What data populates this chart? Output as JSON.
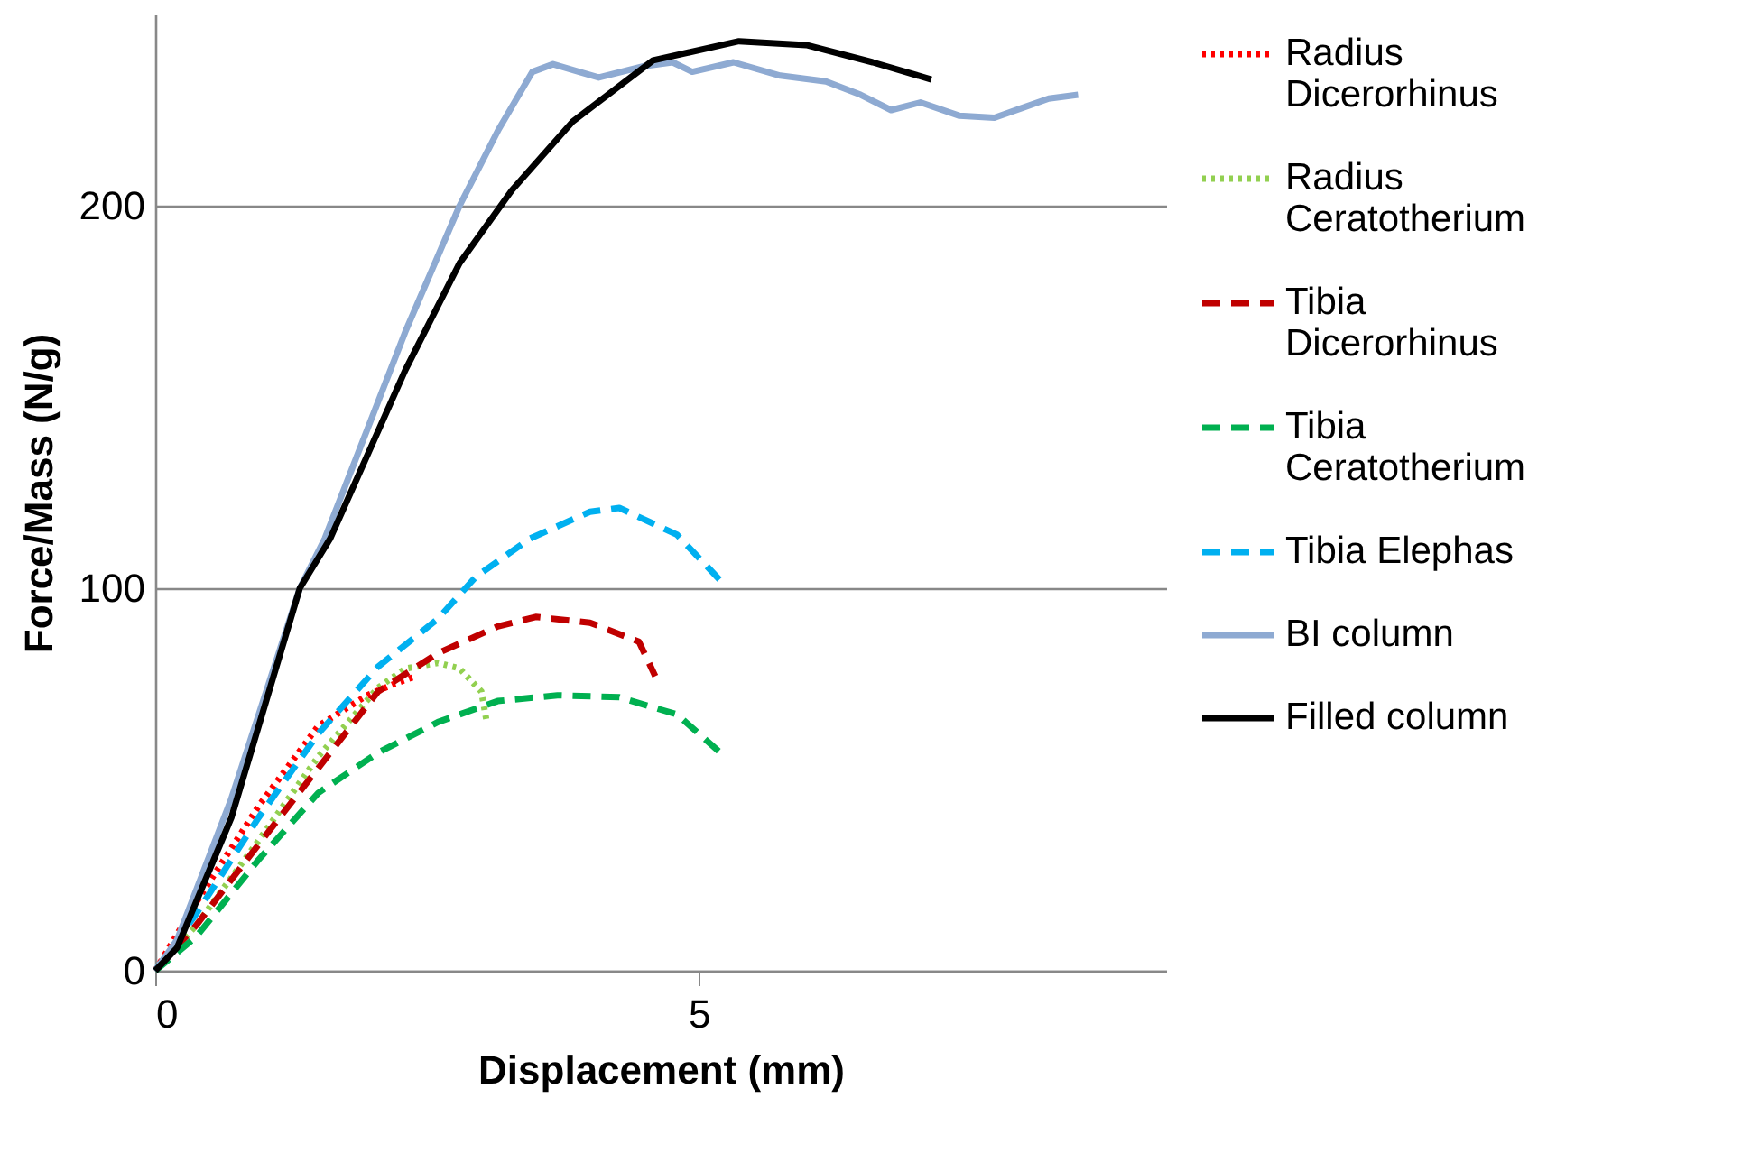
{
  "chart_data": {
    "type": "line",
    "xlabel": "Displacement  (mm)",
    "ylabel": "Force/Mass (N/g)",
    "xlim": [
      0,
      9.3
    ],
    "ylim": [
      0,
      250
    ],
    "xticks": [
      0,
      5
    ],
    "yticks": [
      0,
      100,
      200
    ],
    "grid": "y",
    "legend": "right",
    "marker": "none",
    "series": [
      {
        "name": "Radius Dicerorhinus",
        "color": "#ff0000",
        "line_style": "dotted",
        "x": [
          0,
          0.38,
          0.95,
          1.5,
          1.95,
          2.2,
          2.4
        ],
        "values": [
          0,
          18,
          43,
          64,
          72,
          75,
          77
        ]
      },
      {
        "name": "Radius Ceratotherium",
        "color": "#92d050",
        "line_style": "dotted",
        "x": [
          0,
          0.38,
          0.95,
          1.5,
          2.05,
          2.3,
          2.6,
          2.8,
          3.0,
          3.05
        ],
        "values": [
          0,
          12,
          34,
          56,
          74,
          79,
          80.5,
          79,
          73,
          65
        ]
      },
      {
        "name": "Tibia Dicerorhinus",
        "color": "#c00000",
        "line_style": "dashed",
        "x": [
          0,
          0.38,
          0.95,
          1.5,
          2.05,
          2.6,
          3.15,
          3.5,
          4.0,
          4.45,
          4.6
        ],
        "values": [
          0,
          12,
          33,
          53,
          73,
          83,
          90,
          92.5,
          91,
          86,
          77
        ]
      },
      {
        "name": "Tibia Ceratotherium",
        "color": "#00b050",
        "line_style": "dashed",
        "x": [
          0,
          0.38,
          0.95,
          1.5,
          2.05,
          2.6,
          3.15,
          3.7,
          4.27,
          4.8,
          5.2
        ],
        "values": [
          0,
          9,
          29,
          46.5,
          57,
          65,
          70.5,
          72,
          71.5,
          67,
          57
        ]
      },
      {
        "name": "Tibia Elephas",
        "color": "#00b0f0",
        "line_style": "dashed",
        "x": [
          0,
          0.38,
          0.95,
          1.5,
          2.05,
          2.6,
          2.95,
          3.45,
          4.0,
          4.27,
          4.8,
          5.2
        ],
        "values": [
          0,
          15,
          40,
          62,
          79.5,
          92,
          103,
          113,
          120,
          121,
          114,
          102
        ]
      },
      {
        "name": "BI column",
        "color": "#8eaad2",
        "line_style": "solid",
        "x": [
          0,
          0.2,
          0.7,
          1.33,
          1.56,
          2.3,
          2.8,
          3.16,
          3.47,
          3.66,
          3.9,
          4.08,
          4.5,
          4.76,
          4.94,
          5.32,
          5.75,
          6.17,
          6.49,
          6.77,
          7.04,
          7.4,
          7.72,
          7.97,
          8.22,
          8.49
        ],
        "values": [
          0,
          8,
          45,
          100,
          113,
          167,
          200,
          220,
          235,
          237,
          235,
          233.5,
          236.5,
          237.5,
          235,
          237.5,
          234,
          232.5,
          229,
          225,
          227,
          223.5,
          223,
          225.5,
          228,
          229
        ]
      },
      {
        "name": "Filled column",
        "color": "#000000",
        "line_style": "solid",
        "x": [
          0,
          0.2,
          0.7,
          1.33,
          1.61,
          2.3,
          2.8,
          3.28,
          3.84,
          4.58,
          5.37,
          5.99,
          6.6,
          7.14
        ],
        "values": [
          0,
          6,
          40,
          100,
          113,
          157,
          185,
          204,
          222,
          238,
          243,
          242,
          237.5,
          233
        ]
      }
    ]
  }
}
